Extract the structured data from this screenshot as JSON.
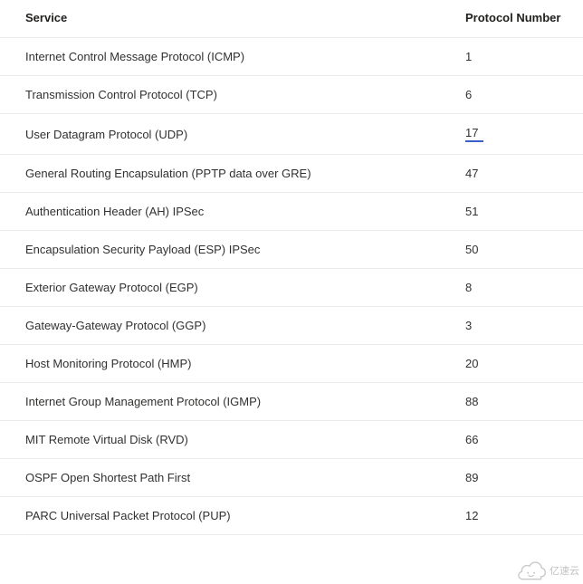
{
  "table": {
    "columns": [
      {
        "key": "service",
        "label": "Service"
      },
      {
        "key": "protocol",
        "label": "Protocol Number"
      }
    ],
    "column_widths": [
      "auto",
      "130px"
    ],
    "header_fontsize": 13,
    "header_fontweight": 600,
    "cell_fontsize": 13,
    "row_border_color": "#edebe9",
    "text_color": "#323130",
    "background_color": "#ffffff",
    "highlight_underline_color": "#3b5fc7",
    "highlighted_row_index": 2,
    "rows": [
      {
        "service": "Internet Control Message Protocol (ICMP)",
        "protocol": "1"
      },
      {
        "service": "Transmission Control Protocol (TCP)",
        "protocol": "6"
      },
      {
        "service": "User Datagram Protocol (UDP)",
        "protocol": "17"
      },
      {
        "service": "General Routing Encapsulation (PPTP data over GRE)",
        "protocol": "47"
      },
      {
        "service": "Authentication Header (AH) IPSec",
        "protocol": "51"
      },
      {
        "service": "Encapsulation Security Payload (ESP) IPSec",
        "protocol": "50"
      },
      {
        "service": "Exterior Gateway Protocol (EGP)",
        "protocol": "8"
      },
      {
        "service": "Gateway-Gateway Protocol (GGP)",
        "protocol": "3"
      },
      {
        "service": "Host Monitoring Protocol (HMP)",
        "protocol": "20"
      },
      {
        "service": "Internet Group Management Protocol (IGMP)",
        "protocol": "88"
      },
      {
        "service": "MIT Remote Virtual Disk (RVD)",
        "protocol": "66"
      },
      {
        "service": "OSPF Open Shortest Path First",
        "protocol": "89"
      },
      {
        "service": "PARC Universal Packet Protocol (PUP)",
        "protocol": "12"
      }
    ]
  },
  "watermark": {
    "text": "亿速云",
    "color": "#777777"
  }
}
